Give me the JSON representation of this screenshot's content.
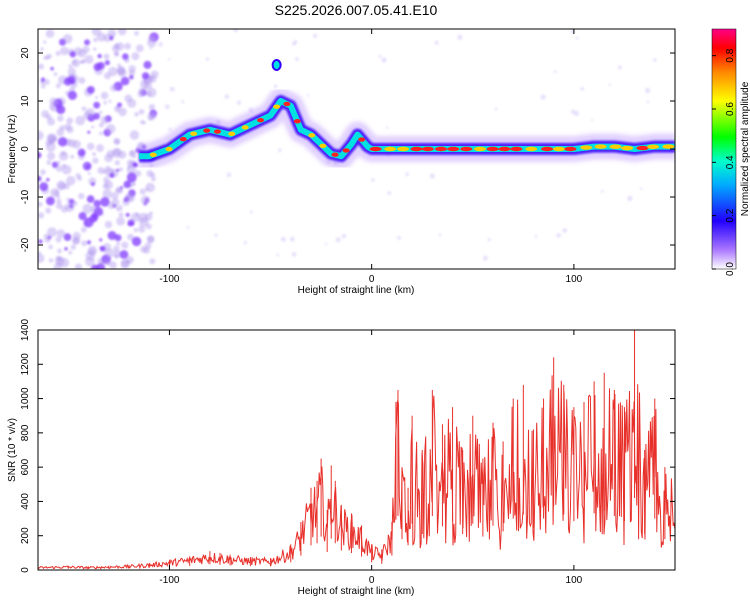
{
  "title": "S225.2026.007.05.41.E10",
  "chart_data": [
    {
      "type": "heatmap",
      "xlabel": "Height of straight line (km)",
      "ylabel": "Frequency (Hz)",
      "xlim": [
        -165,
        150
      ],
      "ylim": [
        -25,
        25
      ],
      "xticks": [
        -100,
        0,
        100
      ],
      "yticks": [
        -20,
        -10,
        0,
        10,
        20
      ],
      "colorbar": {
        "label": "Normalized spectral amplitude",
        "range": [
          0,
          0.9
        ],
        "ticks": [
          "0.0",
          "0.2",
          "0.4",
          "0.6",
          "0.8"
        ],
        "colormap": [
          "#ffffff",
          "#8800ff",
          "#0000ff",
          "#00ffff",
          "#00ff00",
          "#ffff00",
          "#ff8800",
          "#ff0000",
          "#ff00aa"
        ]
      },
      "ridge": {
        "x": [
          -115,
          -110,
          -100,
          -90,
          -80,
          -70,
          -60,
          -50,
          -45,
          -40,
          -35,
          -30,
          -25,
          -20,
          -15,
          -12,
          -10,
          -7,
          -5,
          -2,
          0,
          5,
          10,
          20,
          30,
          40,
          50,
          60,
          70,
          80,
          90,
          100,
          110,
          120,
          130,
          140,
          150
        ],
        "y": [
          -1.5,
          -1.5,
          0,
          3,
          4,
          3,
          5,
          7,
          10,
          9,
          4,
          3,
          1,
          -1,
          -1.5,
          0,
          1,
          3,
          2,
          0.5,
          0,
          0,
          0,
          0,
          0,
          0,
          0,
          0,
          0,
          0,
          0,
          0,
          0.5,
          0.5,
          0,
          0.5,
          0.5
        ]
      },
      "noise_region_x": [
        -165,
        -115
      ],
      "colors": {
        "ridge_core": "#ff2020",
        "ridge_mid": "#00e0e0",
        "ridge_edge": "#3300ff",
        "halo": "#8844ff",
        "noise": "#b39cf0"
      }
    },
    {
      "type": "line",
      "xlabel": "Height of straight line (km)",
      "ylabel": "SNR (10 * v/v)",
      "xlim": [
        -165,
        150
      ],
      "ylim": [
        0,
        1400
      ],
      "xticks": [
        -100,
        0,
        100
      ],
      "yticks": [
        0,
        200,
        400,
        600,
        800,
        1000,
        1200,
        1400
      ],
      "color": "#e8302a",
      "series": [
        {
          "x": [
            -165,
            -150,
            -140,
            -130,
            -120,
            -110,
            -100,
            -90,
            -80,
            -75,
            -70,
            -60,
            -50,
            -40,
            -35,
            -30,
            -27,
            -25,
            -22,
            -20,
            -18,
            -15,
            -10,
            -5,
            0,
            5,
            10,
            12,
            13,
            15,
            18,
            20,
            25,
            30,
            35,
            40,
            45,
            50,
            55,
            60,
            65,
            70,
            75,
            80,
            85,
            90,
            95,
            100,
            105,
            110,
            115,
            120,
            125,
            130,
            135,
            140,
            145,
            150
          ],
          "y": [
            20,
            25,
            20,
            25,
            30,
            40,
            60,
            80,
            110,
            100,
            90,
            75,
            70,
            150,
            280,
            480,
            520,
            650,
            350,
            610,
            520,
            380,
            330,
            260,
            150,
            120,
            280,
            980,
            1050,
            600,
            480,
            900,
            700,
            1050,
            850,
            950,
            700,
            900,
            650,
            860,
            750,
            1000,
            1080,
            820,
            1000,
            1240,
            1080,
            950,
            980,
            1100,
            1150,
            1050,
            950,
            1400,
            700,
            1000,
            600,
            530
          ]
        }
      ]
    }
  ]
}
